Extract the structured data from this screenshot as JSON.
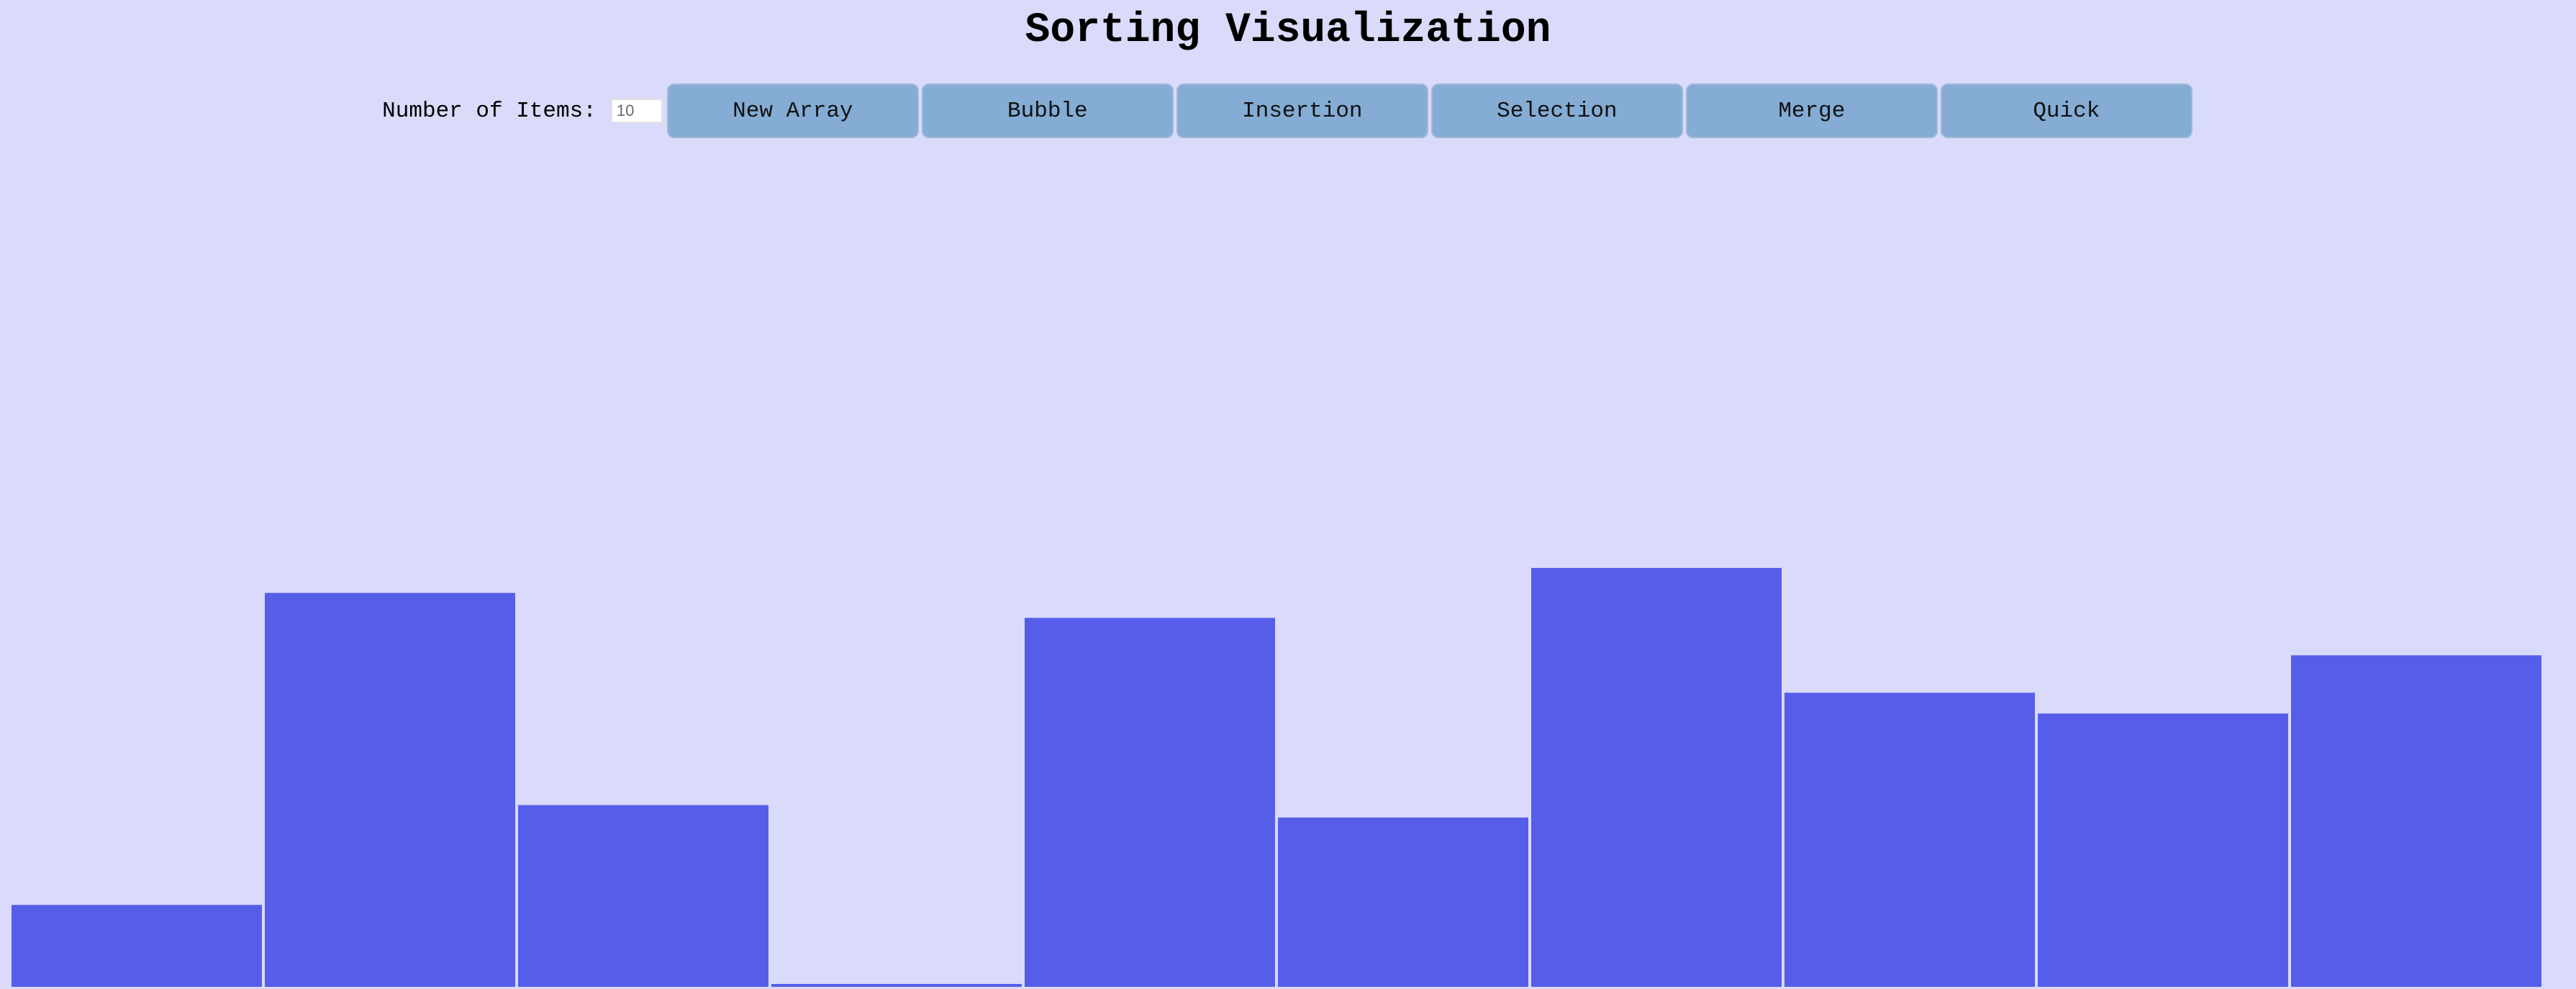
{
  "page": {
    "title": "Sorting Visualization",
    "background": "#dadafa"
  },
  "controls": {
    "items_label": "Number of Items:",
    "items_value": "10",
    "buttons": [
      {
        "label": "New Array"
      },
      {
        "label": "Bubble"
      },
      {
        "label": "Insertion"
      },
      {
        "label": "Selection"
      },
      {
        "label": "Merge"
      },
      {
        "label": "Quick"
      }
    ],
    "button_color": "#84acd4"
  },
  "chart_data": {
    "type": "bar",
    "values": [
      0.19,
      0.94,
      0.43,
      0.0,
      0.88,
      0.4,
      1.0,
      0.7,
      0.65,
      0.79
    ],
    "bar_color": "#565de9"
  }
}
